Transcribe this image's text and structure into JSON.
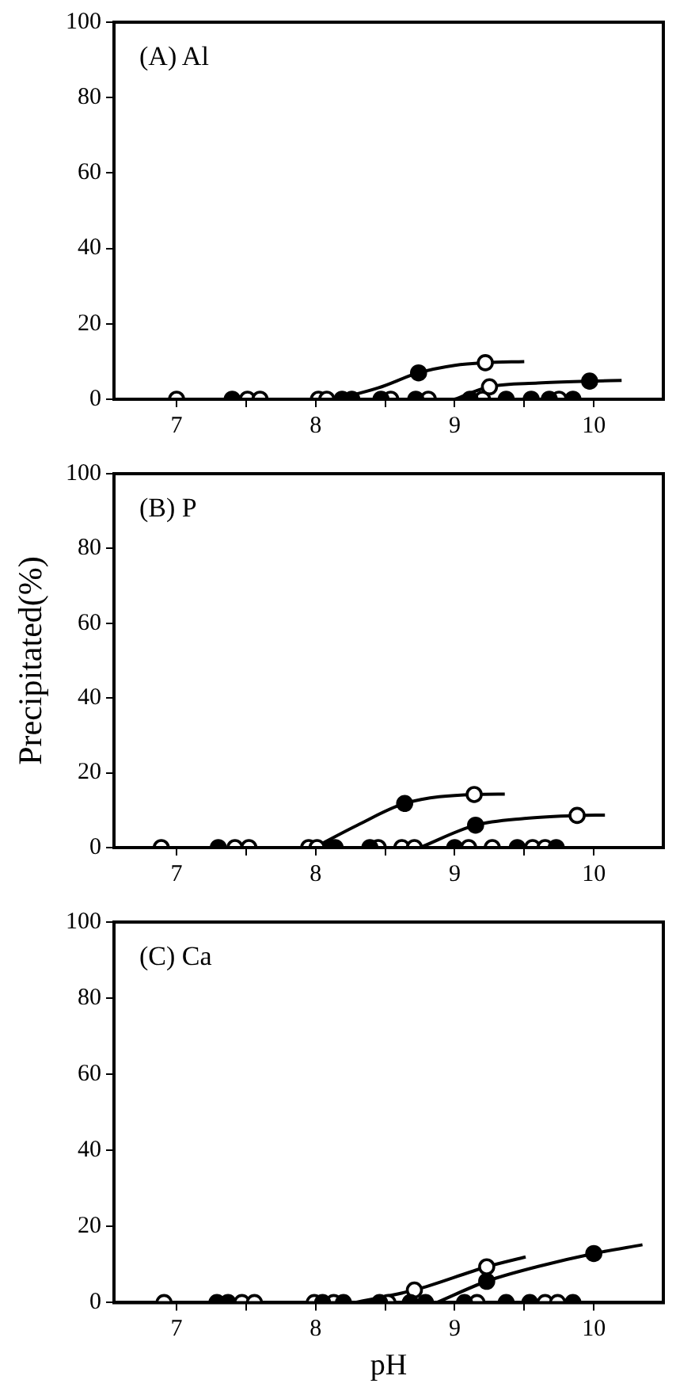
{
  "chart_data": [
    {
      "type": "scatter",
      "annotations": [
        "(A) Al"
      ],
      "xlim": [
        6.55,
        10.5
      ],
      "ylim": [
        0,
        100
      ],
      "grid": false,
      "legend": false,
      "xticks": [
        7,
        {
          "value": 7.5,
          "label": null
        },
        8,
        {
          "value": 8.5,
          "label": null
        },
        9,
        {
          "value": 9.5,
          "label": null
        },
        10
      ],
      "yticks": [
        0,
        20,
        40,
        60,
        80,
        100
      ],
      "series": [
        {
          "type": "line",
          "marker": "none",
          "color": "#000000",
          "x": [
            8.15,
            8.45,
            8.74,
            9.0,
            9.22,
            9.5
          ],
          "values": [
            0,
            3,
            7,
            9,
            9.7,
            10
          ]
        },
        {
          "type": "line",
          "marker": "none",
          "color": "#000000",
          "x": [
            9.0,
            9.25,
            9.6,
            9.97,
            10.2
          ],
          "values": [
            0,
            3.3,
            4.3,
            4.8,
            5
          ]
        },
        {
          "marker": "circle",
          "color": "#000000",
          "x": [
            7.4,
            8.19,
            8.26,
            8.47,
            8.72,
            8.74,
            9.11,
            9.37,
            9.55,
            9.68,
            9.85,
            9.97
          ],
          "values": [
            0,
            0,
            0,
            0,
            0,
            7,
            0,
            0,
            0,
            0,
            0,
            4.8
          ]
        },
        {
          "marker": "circle",
          "color": "#ffffff",
          "x": [
            7.0,
            7.51,
            7.6,
            8.02,
            8.08,
            8.54,
            8.81,
            9.2,
            9.75,
            9.22,
            9.25
          ],
          "values": [
            0,
            0,
            0,
            0,
            0,
            0,
            0,
            0,
            0,
            9.7,
            3.3
          ]
        }
      ]
    },
    {
      "type": "scatter",
      "annotations": [
        "(B) P"
      ],
      "ylabel": "Precipitated(%)",
      "xlim": [
        6.55,
        10.5
      ],
      "ylim": [
        0,
        100
      ],
      "grid": false,
      "legend": false,
      "xticks": [
        7,
        {
          "value": 7.5,
          "label": null
        },
        8,
        {
          "value": 8.5,
          "label": null
        },
        9,
        {
          "value": 9.5,
          "label": null
        },
        10
      ],
      "yticks": [
        0,
        20,
        40,
        60,
        80,
        100
      ],
      "series": [
        {
          "type": "line",
          "marker": "none",
          "color": "#000000",
          "x": [
            7.99,
            8.3,
            8.64,
            9.14,
            9.36
          ],
          "values": [
            0,
            6,
            11.8,
            14.2,
            14.3
          ]
        },
        {
          "type": "line",
          "marker": "none",
          "color": "#000000",
          "x": [
            8.75,
            9.15,
            9.5,
            9.88,
            10.08
          ],
          "values": [
            0,
            6,
            7.8,
            8.6,
            8.7
          ]
        },
        {
          "marker": "circle",
          "color": "#000000",
          "x": [
            7.3,
            8.11,
            8.14,
            8.39,
            9.0,
            9.45,
            9.73,
            8.64,
            9.15
          ],
          "values": [
            0,
            0,
            0,
            0,
            0,
            0,
            0,
            11.8,
            6
          ]
        },
        {
          "marker": "circle",
          "color": "#ffffff",
          "x": [
            6.89,
            7.42,
            7.52,
            7.95,
            8.01,
            8.45,
            8.62,
            8.71,
            9.1,
            9.27,
            9.56,
            9.65,
            9.14,
            9.88
          ],
          "values": [
            0,
            0,
            0,
            0,
            0,
            0,
            0,
            0,
            0,
            0,
            0,
            0,
            14.2,
            8.6
          ]
        }
      ]
    },
    {
      "type": "scatter",
      "annotations": [
        "(C) Ca"
      ],
      "xlabel": "pH",
      "xlim": [
        6.55,
        10.5
      ],
      "ylim": [
        0,
        100
      ],
      "grid": false,
      "legend": false,
      "xticks": [
        7,
        {
          "value": 7.5,
          "label": null
        },
        8,
        {
          "value": 8.5,
          "label": null
        },
        9,
        {
          "value": 9.5,
          "label": null
        },
        10
      ],
      "yticks": [
        0,
        20,
        40,
        60,
        80,
        100
      ],
      "series": [
        {
          "type": "line",
          "marker": "none",
          "color": "#000000",
          "x": [
            8.28,
            8.71,
            9.23,
            9.51
          ],
          "values": [
            0,
            3.3,
            9.4,
            12
          ]
        },
        {
          "type": "line",
          "marker": "none",
          "color": "#000000",
          "x": [
            8.87,
            9.23,
            9.6,
            10.0,
            10.35
          ],
          "values": [
            0,
            5.6,
            9.5,
            12.9,
            15.2
          ]
        },
        {
          "marker": "circle",
          "color": "#000000",
          "x": [
            7.29,
            7.37,
            8.05,
            8.2,
            8.46,
            8.68,
            8.79,
            9.07,
            9.37,
            9.54,
            9.85,
            9.23,
            10.0
          ],
          "values": [
            0,
            0,
            0,
            0,
            0,
            0,
            0,
            0,
            0,
            0,
            0,
            5.6,
            12.9
          ]
        },
        {
          "marker": "circle",
          "color": "#ffffff",
          "x": [
            6.91,
            7.47,
            7.56,
            7.99,
            8.13,
            8.52,
            9.16,
            9.65,
            9.74,
            8.71,
            9.23
          ],
          "values": [
            0,
            0,
            0,
            0,
            0,
            0,
            0,
            0,
            0,
            3.3,
            9.4
          ]
        }
      ]
    }
  ]
}
